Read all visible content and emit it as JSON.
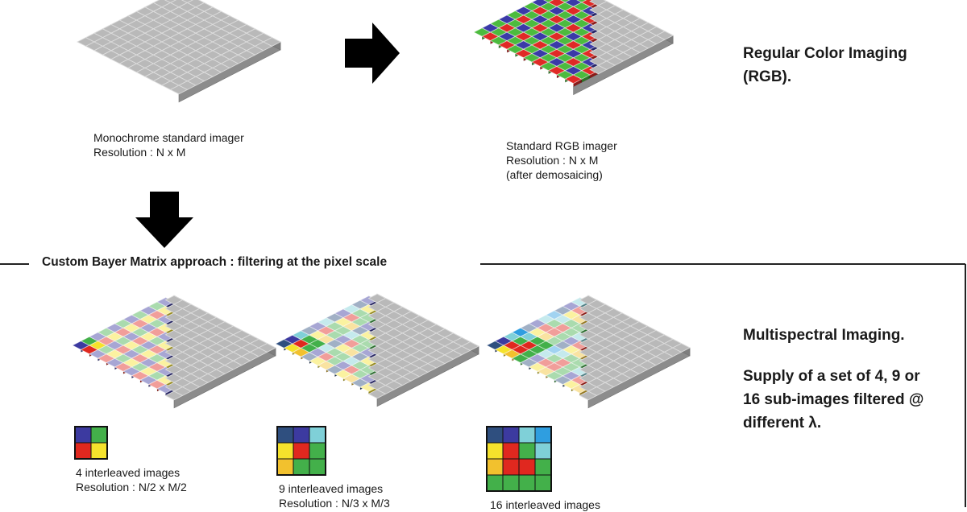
{
  "top": {
    "mono_caption": [
      "Monochrome standard imager",
      "Resolution : N x M"
    ],
    "rgb_caption": [
      "Standard RGB imager",
      "Resolution : N x M",
      "(after demosaicing)"
    ],
    "regular_label": [
      "Regular Color Imaging",
      "(RGB)."
    ]
  },
  "section": {
    "title": "Custom Bayer Matrix approach : filtering at the pixel scale",
    "multispectral_label": [
      "Multispectral Imaging.",
      "",
      "Supply of a set of 4, 9 or",
      "16 sub-images filtered @",
      "different λ."
    ],
    "captions": [
      [
        "4 interleaved images",
        "Resolution : N/2 x M/2"
      ],
      [
        "9 interleaved images",
        "Resolution : N/3 x M/3"
      ],
      [
        "16 interleaved images"
      ]
    ]
  },
  "colors": {
    "gray_top": "#b9b9b9",
    "gray_side": "#8c8c8c",
    "grid_line": "#dddddd",
    "frame": "#222222",
    "rgb": [
      "#3a3aa8",
      "#4cbb3e",
      "#e02a26"
    ],
    "mosaic2": [
      "#3c3aa0",
      "#43b04a",
      "#e0281f",
      "#f5e22c"
    ],
    "mosaic3": [
      "#2f4f7f",
      "#3c3aa0",
      "#7fd0d8",
      "#f5e22c",
      "#e0281f",
      "#43b04a",
      "#f2c12e",
      "#43b04a",
      "#43b04a"
    ],
    "mosaic4": [
      "#2f4f7f",
      "#3c3aa0",
      "#7fd0d8",
      "#2f9ee0",
      "#f5e22c",
      "#e0281f",
      "#43b04a",
      "#7fd0d8",
      "#f2c12e",
      "#e0281f",
      "#e0281f",
      "#43b04a",
      "#43b04a",
      "#43b04a",
      "#43b04a",
      "#43b04a"
    ]
  },
  "icons": [
    "arrow-right-icon",
    "arrow-down-icon"
  ]
}
